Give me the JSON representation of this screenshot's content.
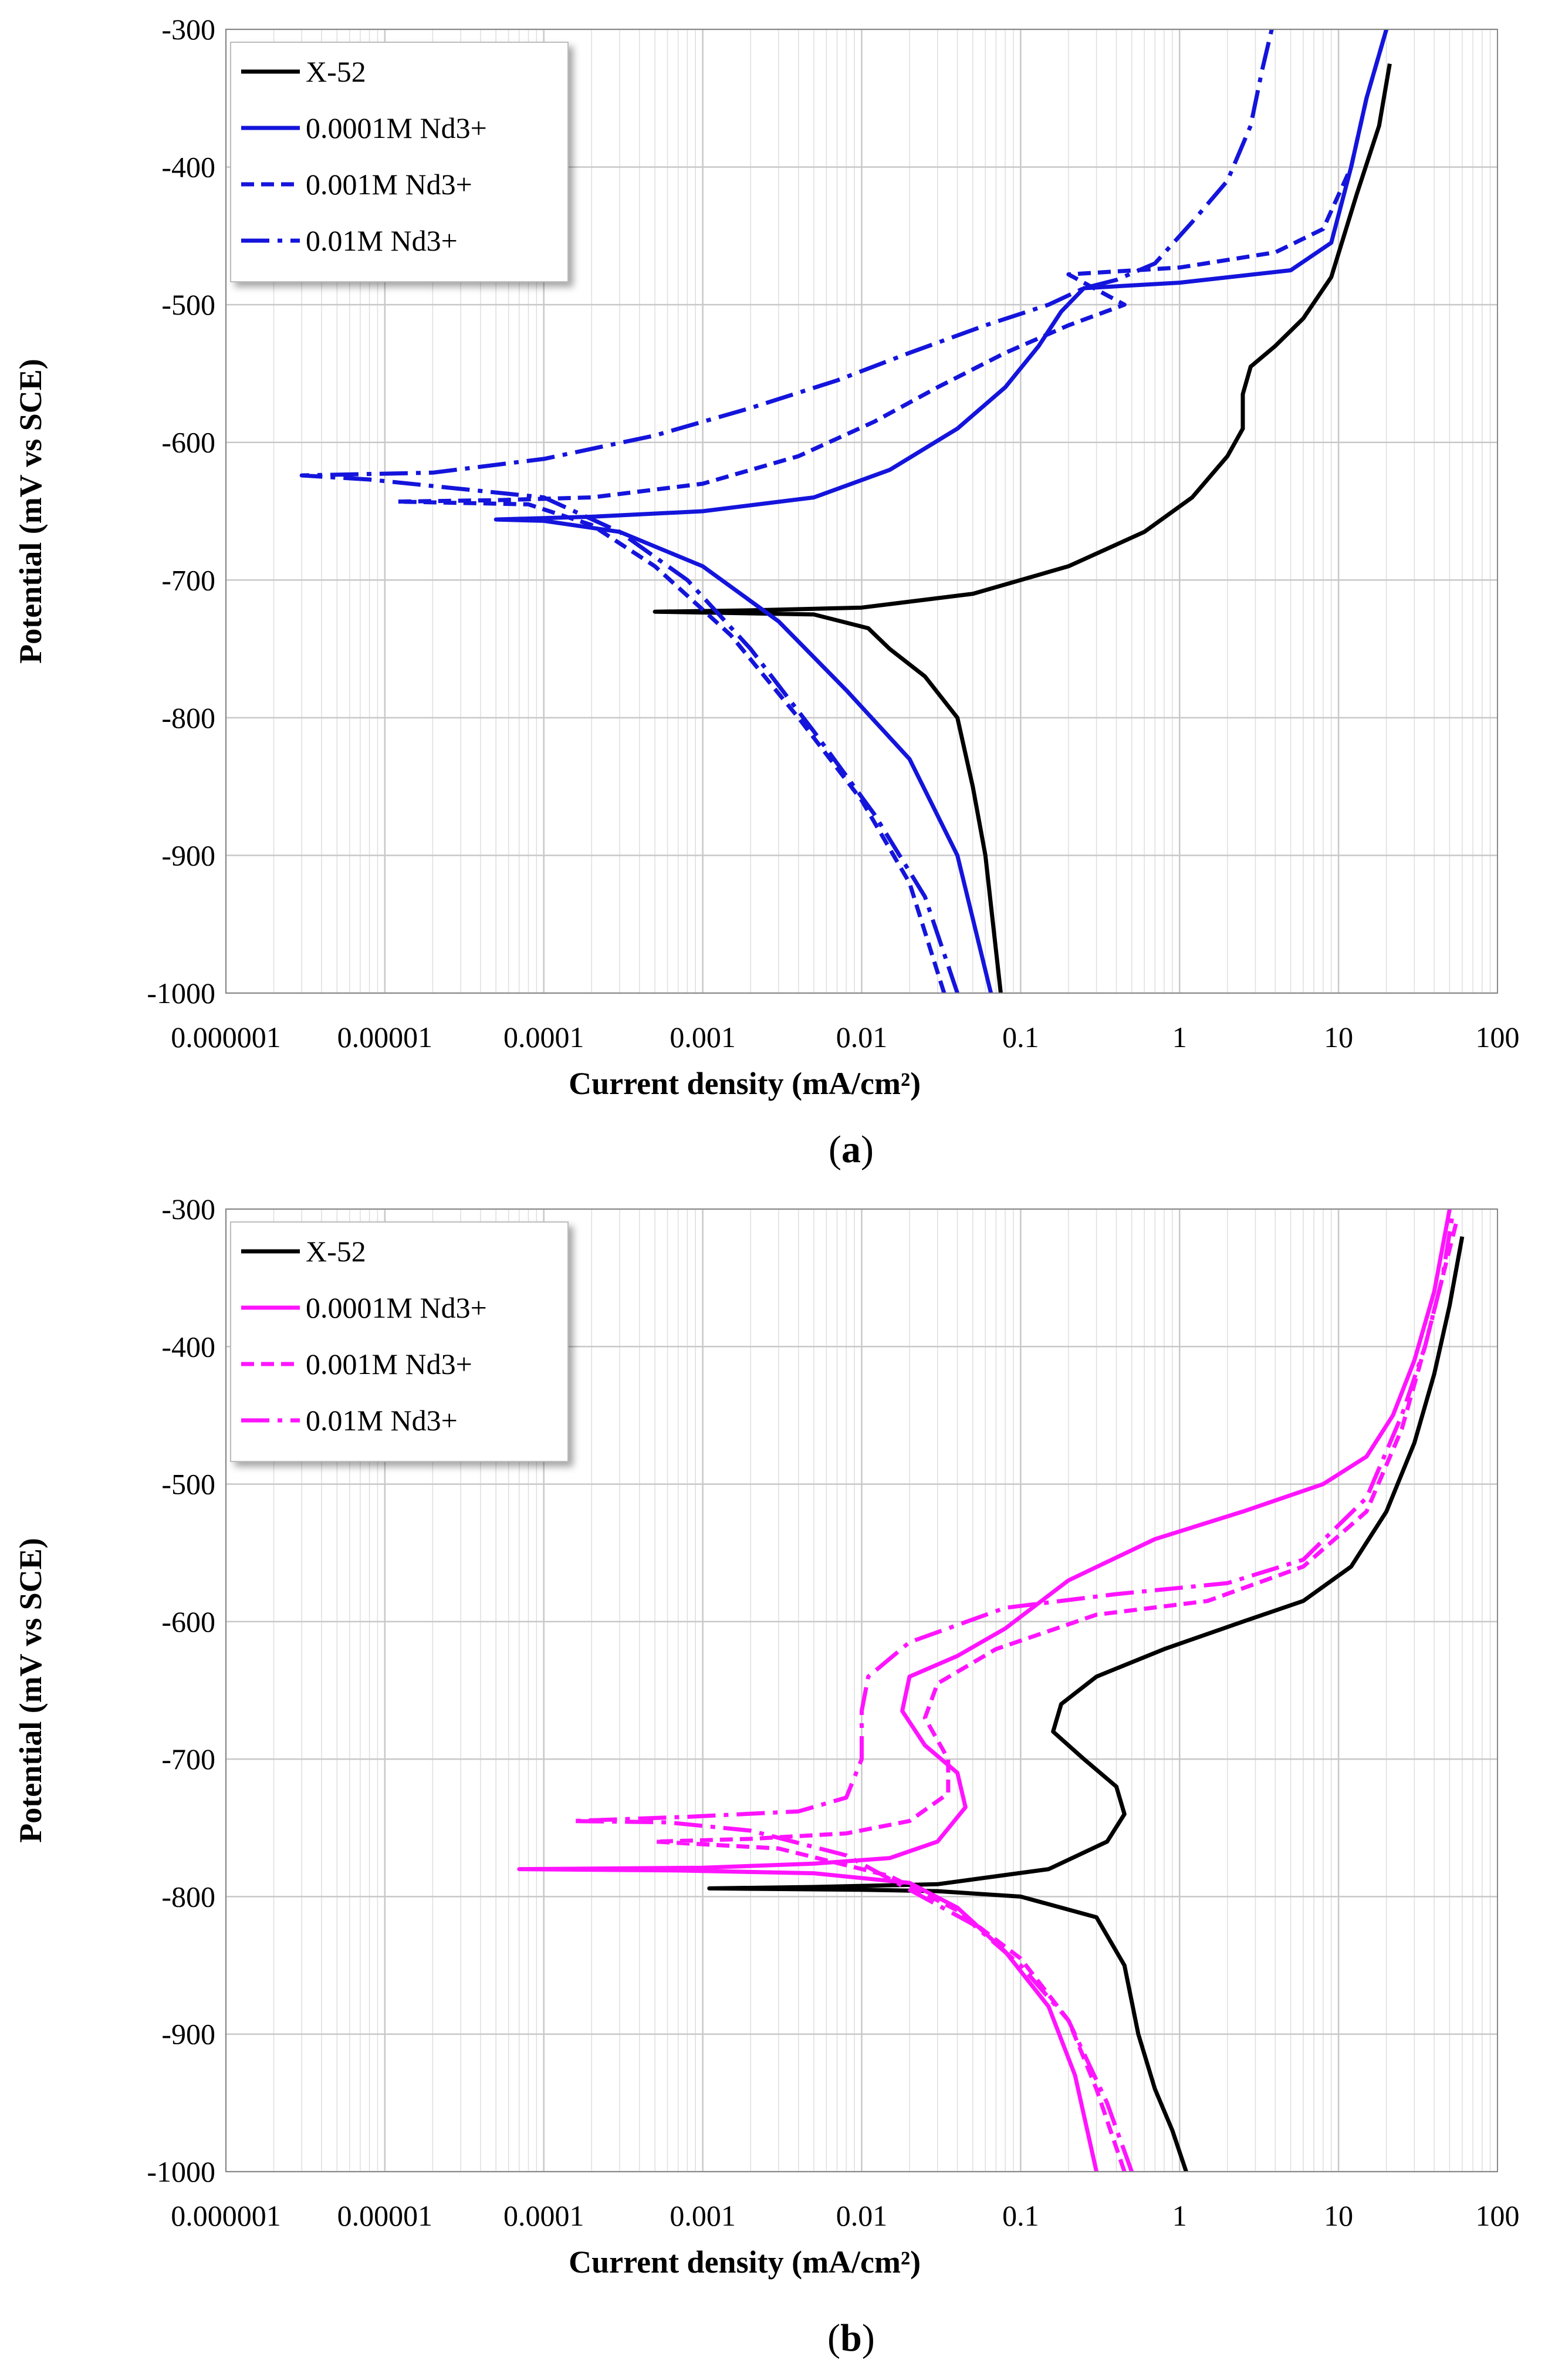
{
  "chart_data": [
    {
      "type": "line",
      "panel": "a",
      "caption": "(a)",
      "xlabel": "Current density (mA/cm²)",
      "ylabel": "Potential (mV vs SCE)",
      "xscale": "log",
      "xlim": [
        1e-06,
        100
      ],
      "ylim": [
        -1000,
        -300
      ],
      "xticks": [
        "0.000001",
        "0.00001",
        "0.0001",
        "0.001",
        "0.01",
        "0.1",
        "1",
        "10",
        "100"
      ],
      "yticks": [
        "-300",
        "-400",
        "-500",
        "-600",
        "-700",
        "-800",
        "-900",
        "-1000"
      ],
      "grid": true,
      "legend_position": "top-left",
      "series": [
        {
          "name": "X-52",
          "color": "#000000",
          "dash": "solid",
          "points": [
            [
              0.075,
              -1000
            ],
            [
              0.06,
              -900
            ],
            [
              0.05,
              -850
            ],
            [
              0.04,
              -800
            ],
            [
              0.025,
              -770
            ],
            [
              0.015,
              -750
            ],
            [
              0.011,
              -735
            ],
            [
              0.005,
              -725
            ],
            [
              0.0005,
              -723
            ],
            [
              0.0005,
              -723
            ],
            [
              0.002,
              -722
            ],
            [
              0.01,
              -720
            ],
            [
              0.05,
              -710
            ],
            [
              0.2,
              -690
            ],
            [
              0.6,
              -665
            ],
            [
              1.2,
              -640
            ],
            [
              2.0,
              -610
            ],
            [
              2.5,
              -590
            ],
            [
              2.5,
              -565
            ],
            [
              2.8,
              -545
            ],
            [
              4.0,
              -530
            ],
            [
              6.0,
              -510
            ],
            [
              9.0,
              -480
            ],
            [
              13.0,
              -420
            ],
            [
              18.0,
              -370
            ],
            [
              21.0,
              -325
            ]
          ]
        },
        {
          "name": "0.0001M Nd3+",
          "color": "#1414dc",
          "dash": "solid",
          "points": [
            [
              0.065,
              -1000
            ],
            [
              0.04,
              -900
            ],
            [
              0.02,
              -830
            ],
            [
              0.008,
              -780
            ],
            [
              0.003,
              -730
            ],
            [
              0.001,
              -690
            ],
            [
              0.0003,
              -665
            ],
            [
              0.0001,
              -657
            ],
            [
              5e-05,
              -656
            ],
            [
              5e-05,
              -656
            ],
            [
              0.0002,
              -654
            ],
            [
              0.001,
              -650
            ],
            [
              0.005,
              -640
            ],
            [
              0.015,
              -620
            ],
            [
              0.04,
              -590
            ],
            [
              0.08,
              -560
            ],
            [
              0.13,
              -530
            ],
            [
              0.18,
              -505
            ],
            [
              0.25,
              -488
            ],
            [
              1.0,
              -484
            ],
            [
              5.0,
              -475
            ],
            [
              9.0,
              -455
            ],
            [
              12.0,
              -400
            ],
            [
              15.0,
              -350
            ],
            [
              20.0,
              -300
            ]
          ]
        },
        {
          "name": "0.001M Nd3+",
          "color": "#1414dc",
          "dash": "dashed",
          "points": [
            [
              0.033,
              -1000
            ],
            [
              0.02,
              -920
            ],
            [
              0.01,
              -860
            ],
            [
              0.004,
              -800
            ],
            [
              0.0015,
              -740
            ],
            [
              0.0005,
              -690
            ],
            [
              0.0002,
              -660
            ],
            [
              8e-05,
              -645
            ],
            [
              1.2e-05,
              -643
            ],
            [
              1.2e-05,
              -643
            ],
            [
              5e-05,
              -642
            ],
            [
              0.0002,
              -640
            ],
            [
              0.001,
              -630
            ],
            [
              0.004,
              -610
            ],
            [
              0.012,
              -585
            ],
            [
              0.03,
              -560
            ],
            [
              0.08,
              -535
            ],
            [
              0.2,
              -515
            ],
            [
              0.45,
              -500
            ],
            [
              0.2,
              -478
            ],
            [
              1.0,
              -473
            ],
            [
              4.0,
              -462
            ],
            [
              8.0,
              -445
            ],
            [
              12.0,
              -400
            ],
            [
              15.0,
              -350
            ],
            [
              20.0,
              -300
            ]
          ]
        },
        {
          "name": "0.01M Nd3+",
          "color": "#1414dc",
          "dash": "dashdot",
          "points": [
            [
              0.04,
              -1000
            ],
            [
              0.025,
              -930
            ],
            [
              0.012,
              -870
            ],
            [
              0.005,
              -810
            ],
            [
              0.002,
              -750
            ],
            [
              0.0008,
              -700
            ],
            [
              0.0003,
              -665
            ],
            [
              0.0001,
              -640
            ],
            [
              8e-06,
              -627
            ],
            [
              3e-06,
              -624
            ],
            [
              3e-06,
              -624
            ],
            [
              2e-05,
              -622
            ],
            [
              0.0001,
              -612
            ],
            [
              0.0005,
              -595
            ],
            [
              0.002,
              -575
            ],
            [
              0.007,
              -555
            ],
            [
              0.02,
              -535
            ],
            [
              0.06,
              -515
            ],
            [
              0.15,
              -500
            ],
            [
              0.25,
              -488
            ],
            [
              0.4,
              -482
            ],
            [
              0.7,
              -470
            ],
            [
              1.2,
              -440
            ],
            [
              2.0,
              -410
            ],
            [
              2.8,
              -370
            ],
            [
              3.3,
              -330
            ],
            [
              3.8,
              -300
            ]
          ]
        }
      ]
    },
    {
      "type": "line",
      "panel": "b",
      "caption": "(b)",
      "xlabel": "Current density (mA/cm²)",
      "ylabel": "Potential (mV vs SCE)",
      "xscale": "log",
      "xlim": [
        1e-06,
        100
      ],
      "ylim": [
        -1000,
        -300
      ],
      "xticks": [
        "0.000001",
        "0.00001",
        "0.0001",
        "0.001",
        "0.01",
        "0.1",
        "1",
        "10",
        "100"
      ],
      "yticks": [
        "-300",
        "-400",
        "-500",
        "-600",
        "-700",
        "-800",
        "-900",
        "-1000"
      ],
      "grid": true,
      "legend_position": "top-left",
      "series": [
        {
          "name": "X-52",
          "color": "#000000",
          "dash": "solid",
          "points": [
            [
              1.1,
              -1000
            ],
            [
              0.9,
              -970
            ],
            [
              0.7,
              -940
            ],
            [
              0.55,
              -900
            ],
            [
              0.45,
              -850
            ],
            [
              0.3,
              -815
            ],
            [
              0.1,
              -800
            ],
            [
              0.03,
              -796
            ],
            [
              0.01,
              -795
            ],
            [
              0.0011,
              -794
            ],
            [
              0.0011,
              -794
            ],
            [
              0.005,
              -793
            ],
            [
              0.03,
              -791
            ],
            [
              0.15,
              -780
            ],
            [
              0.35,
              -760
            ],
            [
              0.45,
              -740
            ],
            [
              0.4,
              -720
            ],
            [
              0.25,
              -700
            ],
            [
              0.16,
              -680
            ],
            [
              0.18,
              -660
            ],
            [
              0.3,
              -640
            ],
            [
              0.8,
              -620
            ],
            [
              2.5,
              -600
            ],
            [
              6.0,
              -585
            ],
            [
              12.0,
              -560
            ],
            [
              20.0,
              -520
            ],
            [
              30.0,
              -470
            ],
            [
              40.0,
              -420
            ],
            [
              50.0,
              -370
            ],
            [
              60.0,
              -320
            ]
          ]
        },
        {
          "name": "0.0001M Nd3+",
          "color": "#ff14ff",
          "dash": "solid",
          "points": [
            [
              0.3,
              -1000
            ],
            [
              0.22,
              -930
            ],
            [
              0.15,
              -880
            ],
            [
              0.08,
              -840
            ],
            [
              0.04,
              -808
            ],
            [
              0.02,
              -790
            ],
            [
              0.005,
              -783
            ],
            [
              0.0007,
              -781
            ],
            [
              7e-05,
              -780
            ],
            [
              7e-05,
              -780
            ],
            [
              0.001,
              -779
            ],
            [
              0.005,
              -776
            ],
            [
              0.015,
              -772
            ],
            [
              0.03,
              -760
            ],
            [
              0.045,
              -735
            ],
            [
              0.04,
              -710
            ],
            [
              0.025,
              -690
            ],
            [
              0.018,
              -665
            ],
            [
              0.02,
              -640
            ],
            [
              0.04,
              -625
            ],
            [
              0.08,
              -605
            ],
            [
              0.2,
              -570
            ],
            [
              0.7,
              -540
            ],
            [
              2.5,
              -520
            ],
            [
              8.0,
              -500
            ],
            [
              15.0,
              -480
            ],
            [
              22.0,
              -450
            ],
            [
              30.0,
              -410
            ],
            [
              40.0,
              -360
            ],
            [
              50.0,
              -300
            ]
          ]
        },
        {
          "name": "0.001M Nd3+",
          "color": "#ff14ff",
          "dash": "dashed",
          "points": [
            [
              0.45,
              -1000
            ],
            [
              0.3,
              -940
            ],
            [
              0.2,
              -890
            ],
            [
              0.1,
              -845
            ],
            [
              0.04,
              -810
            ],
            [
              0.015,
              -785
            ],
            [
              0.003,
              -765
            ],
            [
              0.0005,
              -760
            ],
            [
              0.0005,
              -760
            ],
            [
              0.002,
              -758
            ],
            [
              0.008,
              -754
            ],
            [
              0.02,
              -745
            ],
            [
              0.035,
              -725
            ],
            [
              0.035,
              -700
            ],
            [
              0.025,
              -670
            ],
            [
              0.03,
              -645
            ],
            [
              0.07,
              -620
            ],
            [
              0.3,
              -595
            ],
            [
              1.5,
              -585
            ],
            [
              6.0,
              -560
            ],
            [
              15.0,
              -520
            ],
            [
              25.0,
              -460
            ],
            [
              35.0,
              -400
            ],
            [
              45.0,
              -350
            ],
            [
              55.0,
              -310
            ]
          ]
        },
        {
          "name": "0.01M Nd3+",
          "color": "#ff14ff",
          "dash": "dashdot",
          "points": [
            [
              0.5,
              -1000
            ],
            [
              0.35,
              -950
            ],
            [
              0.2,
              -890
            ],
            [
              0.1,
              -850
            ],
            [
              0.05,
              -820
            ],
            [
              0.02,
              -795
            ],
            [
              0.008,
              -770
            ],
            [
              0.002,
              -752
            ],
            [
              0.0006,
              -746
            ],
            [
              0.00015,
              -745
            ],
            [
              0.00015,
              -745
            ],
            [
              0.0008,
              -742
            ],
            [
              0.004,
              -738
            ],
            [
              0.008,
              -728
            ],
            [
              0.01,
              -700
            ],
            [
              0.01,
              -665
            ],
            [
              0.011,
              -640
            ],
            [
              0.02,
              -615
            ],
            [
              0.08,
              -590
            ],
            [
              0.4,
              -580
            ],
            [
              2.0,
              -572
            ],
            [
              6.0,
              -555
            ],
            [
              15.0,
              -510
            ],
            [
              25.0,
              -450
            ],
            [
              35.0,
              -400
            ],
            [
              45.0,
              -350
            ],
            [
              52.0,
              -305
            ]
          ]
        }
      ]
    }
  ]
}
